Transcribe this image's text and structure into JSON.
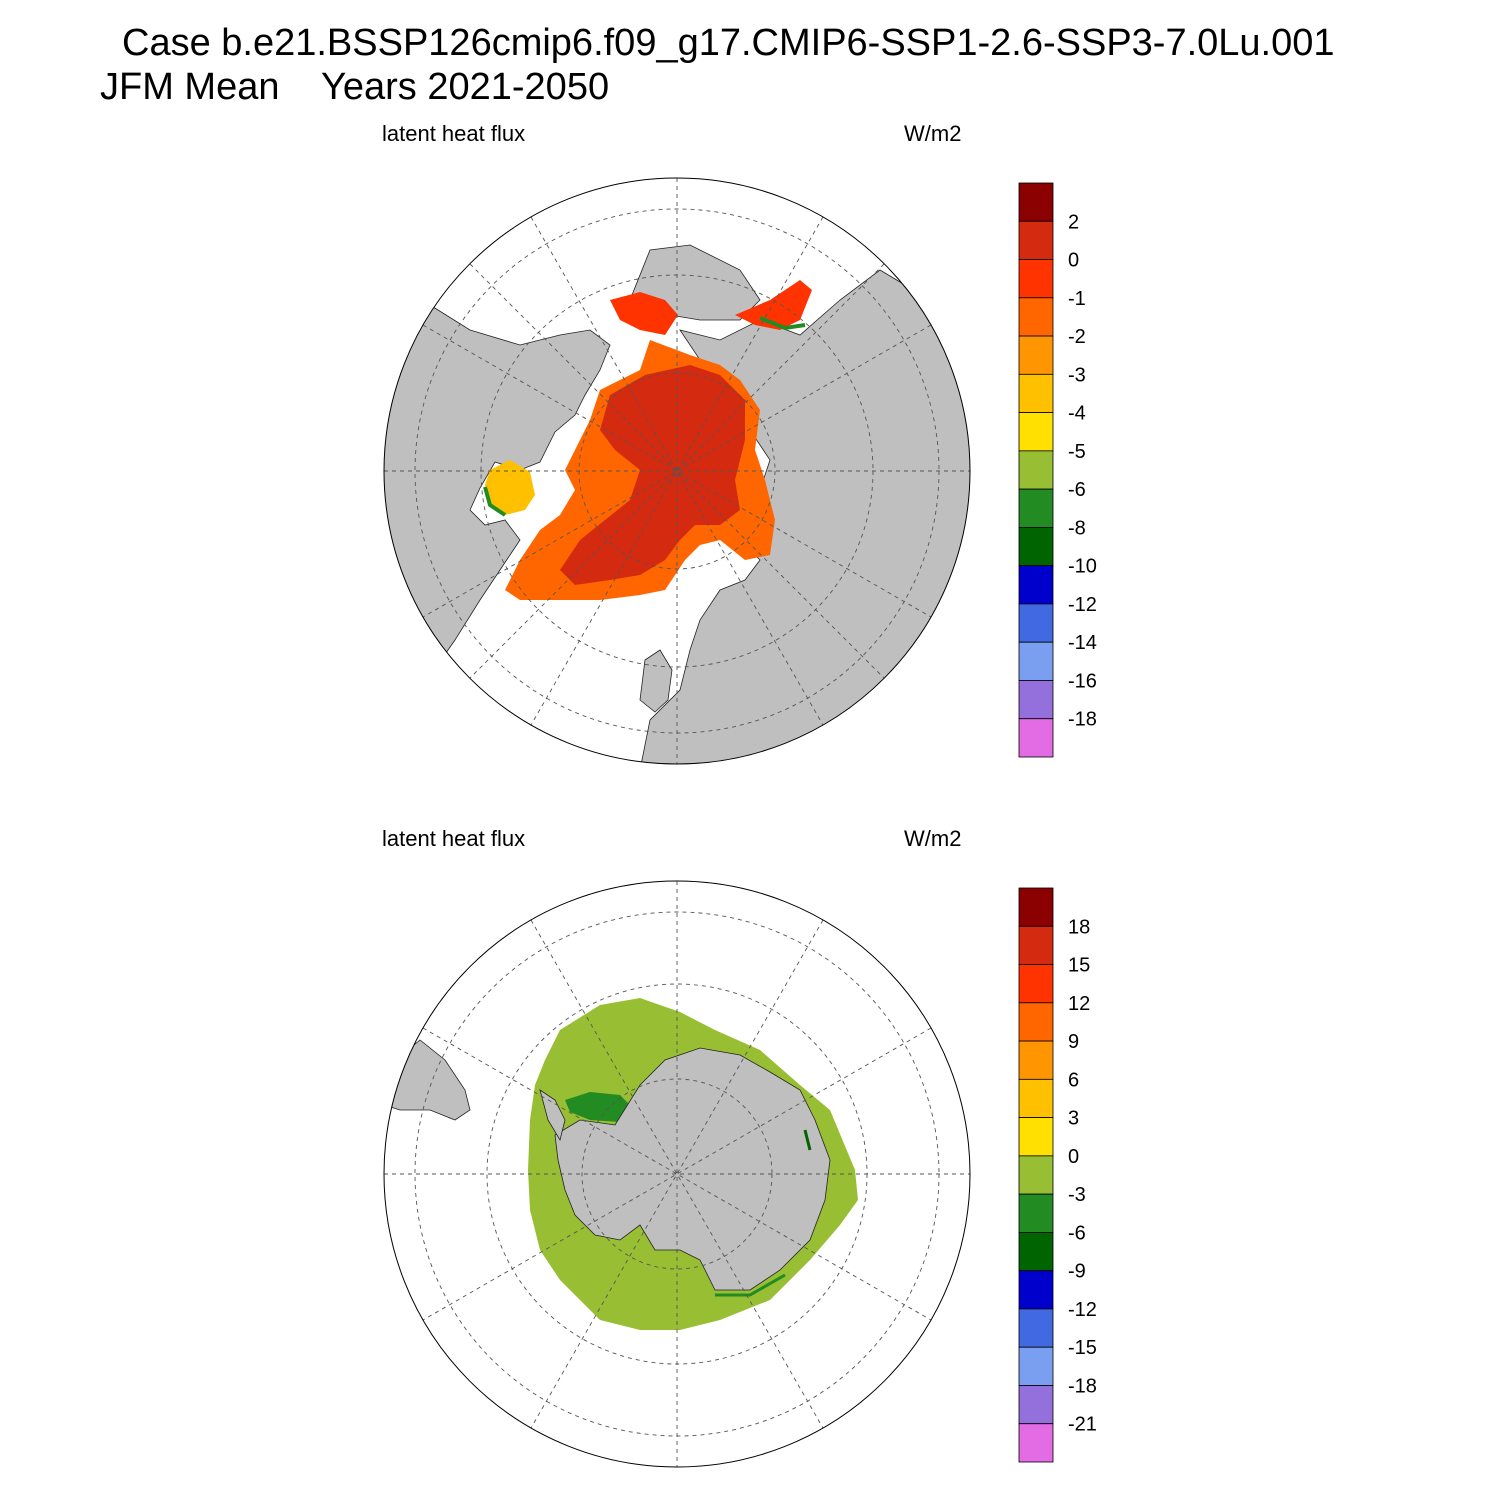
{
  "title": {
    "case_line": "Case b.e21.BSSP126cmip6.f09_g17.CMIP6-SSP1-2.6-SSP3-7.0Lu.001",
    "season_line": "JFM Mean    Years 2021-2050"
  },
  "colors": {
    "land": "#bfbfbf",
    "ocean": "#ffffff",
    "grid": "#555555",
    "palette": [
      "#8b0000",
      "#d42a10",
      "#ff3300",
      "#ff6600",
      "#ff9500",
      "#ffc000",
      "#ffe000",
      "#98bf34",
      "#228b22",
      "#006400",
      "#0000cd",
      "#4169e1",
      "#7b9ff0",
      "#9370db",
      "#e36be3"
    ]
  },
  "panels": [
    {
      "id": "north",
      "hemisphere": "Northern Hemisphere polar stereographic",
      "variable_label": "latent heat flux",
      "units_label": "W/m2",
      "colorbar": {
        "levels": [
          "2",
          "0",
          "-1",
          "-2",
          "-3",
          "-4",
          "-5",
          "-6",
          "-8",
          "-10",
          "-12",
          "-14",
          "-16",
          "-18"
        ]
      }
    },
    {
      "id": "south",
      "hemisphere": "Southern Hemisphere polar stereographic",
      "variable_label": "latent heat flux",
      "units_label": "W/m2",
      "colorbar": {
        "levels": [
          "18",
          "15",
          "12",
          "9",
          "6",
          "3",
          "0",
          "-3",
          "-6",
          "-9",
          "-12",
          "-15",
          "-18",
          "-21"
        ]
      }
    }
  ]
}
